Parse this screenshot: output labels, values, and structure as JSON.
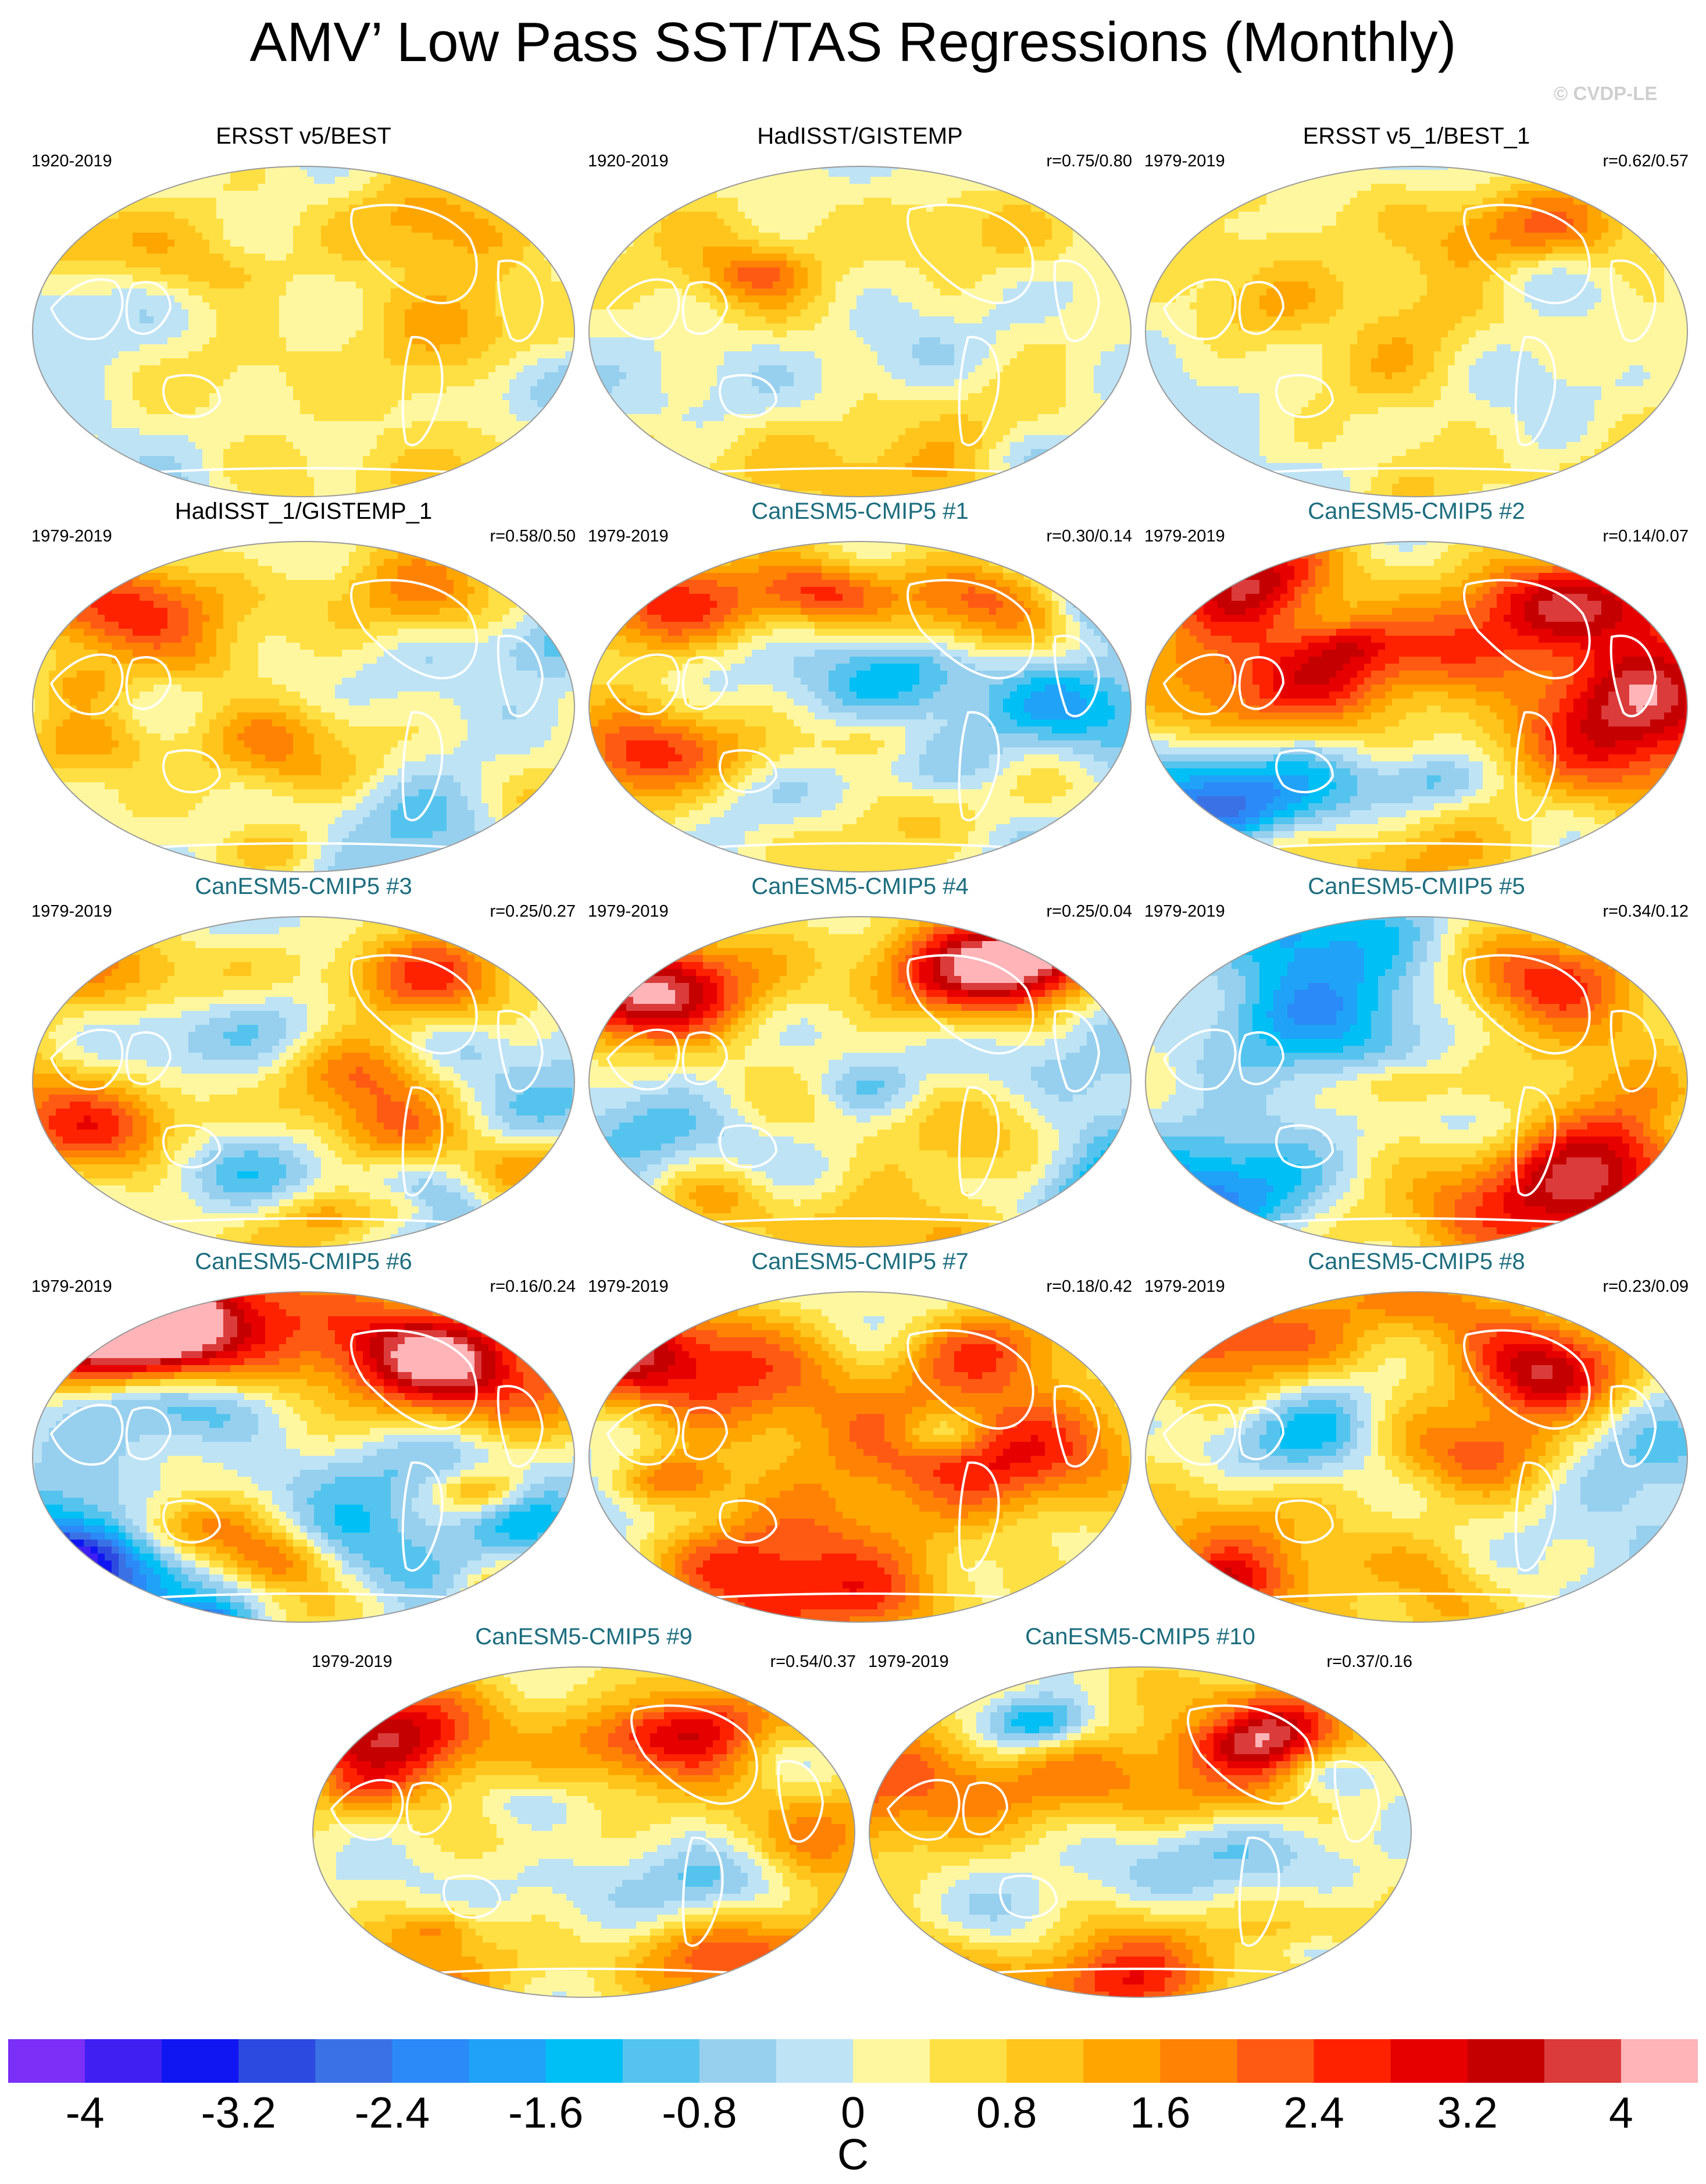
{
  "title": "AMV’ Low Pass SST/TAS Regressions (Monthly)",
  "watermark": "© CVDP-LE",
  "colorbar": {
    "unit": "C",
    "ticks": [
      "-4",
      "-3.2",
      "-2.4",
      "-1.6",
      "-0.8",
      "0",
      "0.8",
      "1.6",
      "2.4",
      "3.2",
      "4"
    ],
    "colors": [
      "#7b2ff7",
      "#3f1ff2",
      "#1016f2",
      "#2d4ae0",
      "#3a72e6",
      "#2b8af7",
      "#1fa2f7",
      "#00bff5",
      "#54c4ee",
      "#97d0ee",
      "#bde3f5",
      "#fff7a0",
      "#ffe044",
      "#ffc51c",
      "#ffa500",
      "#ff8205",
      "#ff5a14",
      "#ff2200",
      "#e70000",
      "#c50000",
      "#db3b3b",
      "#ffb4b8"
    ],
    "levels": [
      -4.4,
      -4.0,
      -3.6,
      -3.2,
      -2.8,
      -2.4,
      -2.0,
      -1.6,
      -1.2,
      -0.8,
      -0.4,
      0.0,
      0.4,
      0.8,
      1.2,
      1.6,
      2.0,
      2.4,
      2.8,
      3.2,
      3.6,
      4.0,
      4.4
    ]
  },
  "panels": [
    {
      "title": "ERSST v5/BEST",
      "kind": "obs",
      "years": "1920-2019",
      "corr": ""
    },
    {
      "title": "HadISST/GISTEMP",
      "kind": "obs",
      "years": "1920-2019",
      "corr": "r=0.75/0.80"
    },
    {
      "title": "ERSST v5_1/BEST_1",
      "kind": "obs",
      "years": "1979-2019",
      "corr": "r=0.62/0.57"
    },
    {
      "title": "HadISST_1/GISTEMP_1",
      "kind": "obs",
      "years": "1979-2019",
      "corr": "r=0.58/0.50"
    },
    {
      "title": "CanESM5-CMIP5 #1",
      "kind": "model",
      "years": "1979-2019",
      "corr": "r=0.30/0.14"
    },
    {
      "title": "CanESM5-CMIP5 #2",
      "kind": "model",
      "years": "1979-2019",
      "corr": "r=0.14/0.07"
    },
    {
      "title": "CanESM5-CMIP5 #3",
      "kind": "model",
      "years": "1979-2019",
      "corr": "r=0.25/0.27"
    },
    {
      "title": "CanESM5-CMIP5 #4",
      "kind": "model",
      "years": "1979-2019",
      "corr": "r=0.25/0.04"
    },
    {
      "title": "CanESM5-CMIP5 #5",
      "kind": "model",
      "years": "1979-2019",
      "corr": "r=0.34/0.12"
    },
    {
      "title": "CanESM5-CMIP5 #6",
      "kind": "model",
      "years": "1979-2019",
      "corr": "r=0.16/0.24"
    },
    {
      "title": "CanESM5-CMIP5 #7",
      "kind": "model",
      "years": "1979-2019",
      "corr": "r=0.18/0.42"
    },
    {
      "title": "CanESM5-CMIP5 #8",
      "kind": "model",
      "years": "1979-2019",
      "corr": "r=0.23/0.09"
    },
    {
      "title": "CanESM5-CMIP5 #9",
      "kind": "model",
      "years": "1979-2019",
      "corr": "r=0.54/0.37"
    },
    {
      "title": "CanESM5-CMIP5 #10",
      "kind": "model",
      "years": "1979-2019",
      "corr": "r=0.37/0.16"
    }
  ],
  "chart_data": {
    "type": "heatmap",
    "title": "AMV’ Low Pass SST/TAS Regressions (Monthly)",
    "colorbar_label": "C",
    "colorbar_range": [
      -4.4,
      4.4
    ],
    "contour_interval": 0.4,
    "panels": [
      "ERSST v5/BEST",
      "HadISST/GISTEMP",
      "ERSST v5_1/BEST_1",
      "HadISST_1/GISTEMP_1",
      "CanESM5-CMIP5 #1",
      "CanESM5-CMIP5 #2",
      "CanESM5-CMIP5 #3",
      "CanESM5-CMIP5 #4",
      "CanESM5-CMIP5 #5",
      "CanESM5-CMIP5 #6",
      "CanESM5-CMIP5 #7",
      "CanESM5-CMIP5 #8",
      "CanESM5-CMIP5 #9",
      "CanESM5-CMIP5 #10"
    ]
  }
}
